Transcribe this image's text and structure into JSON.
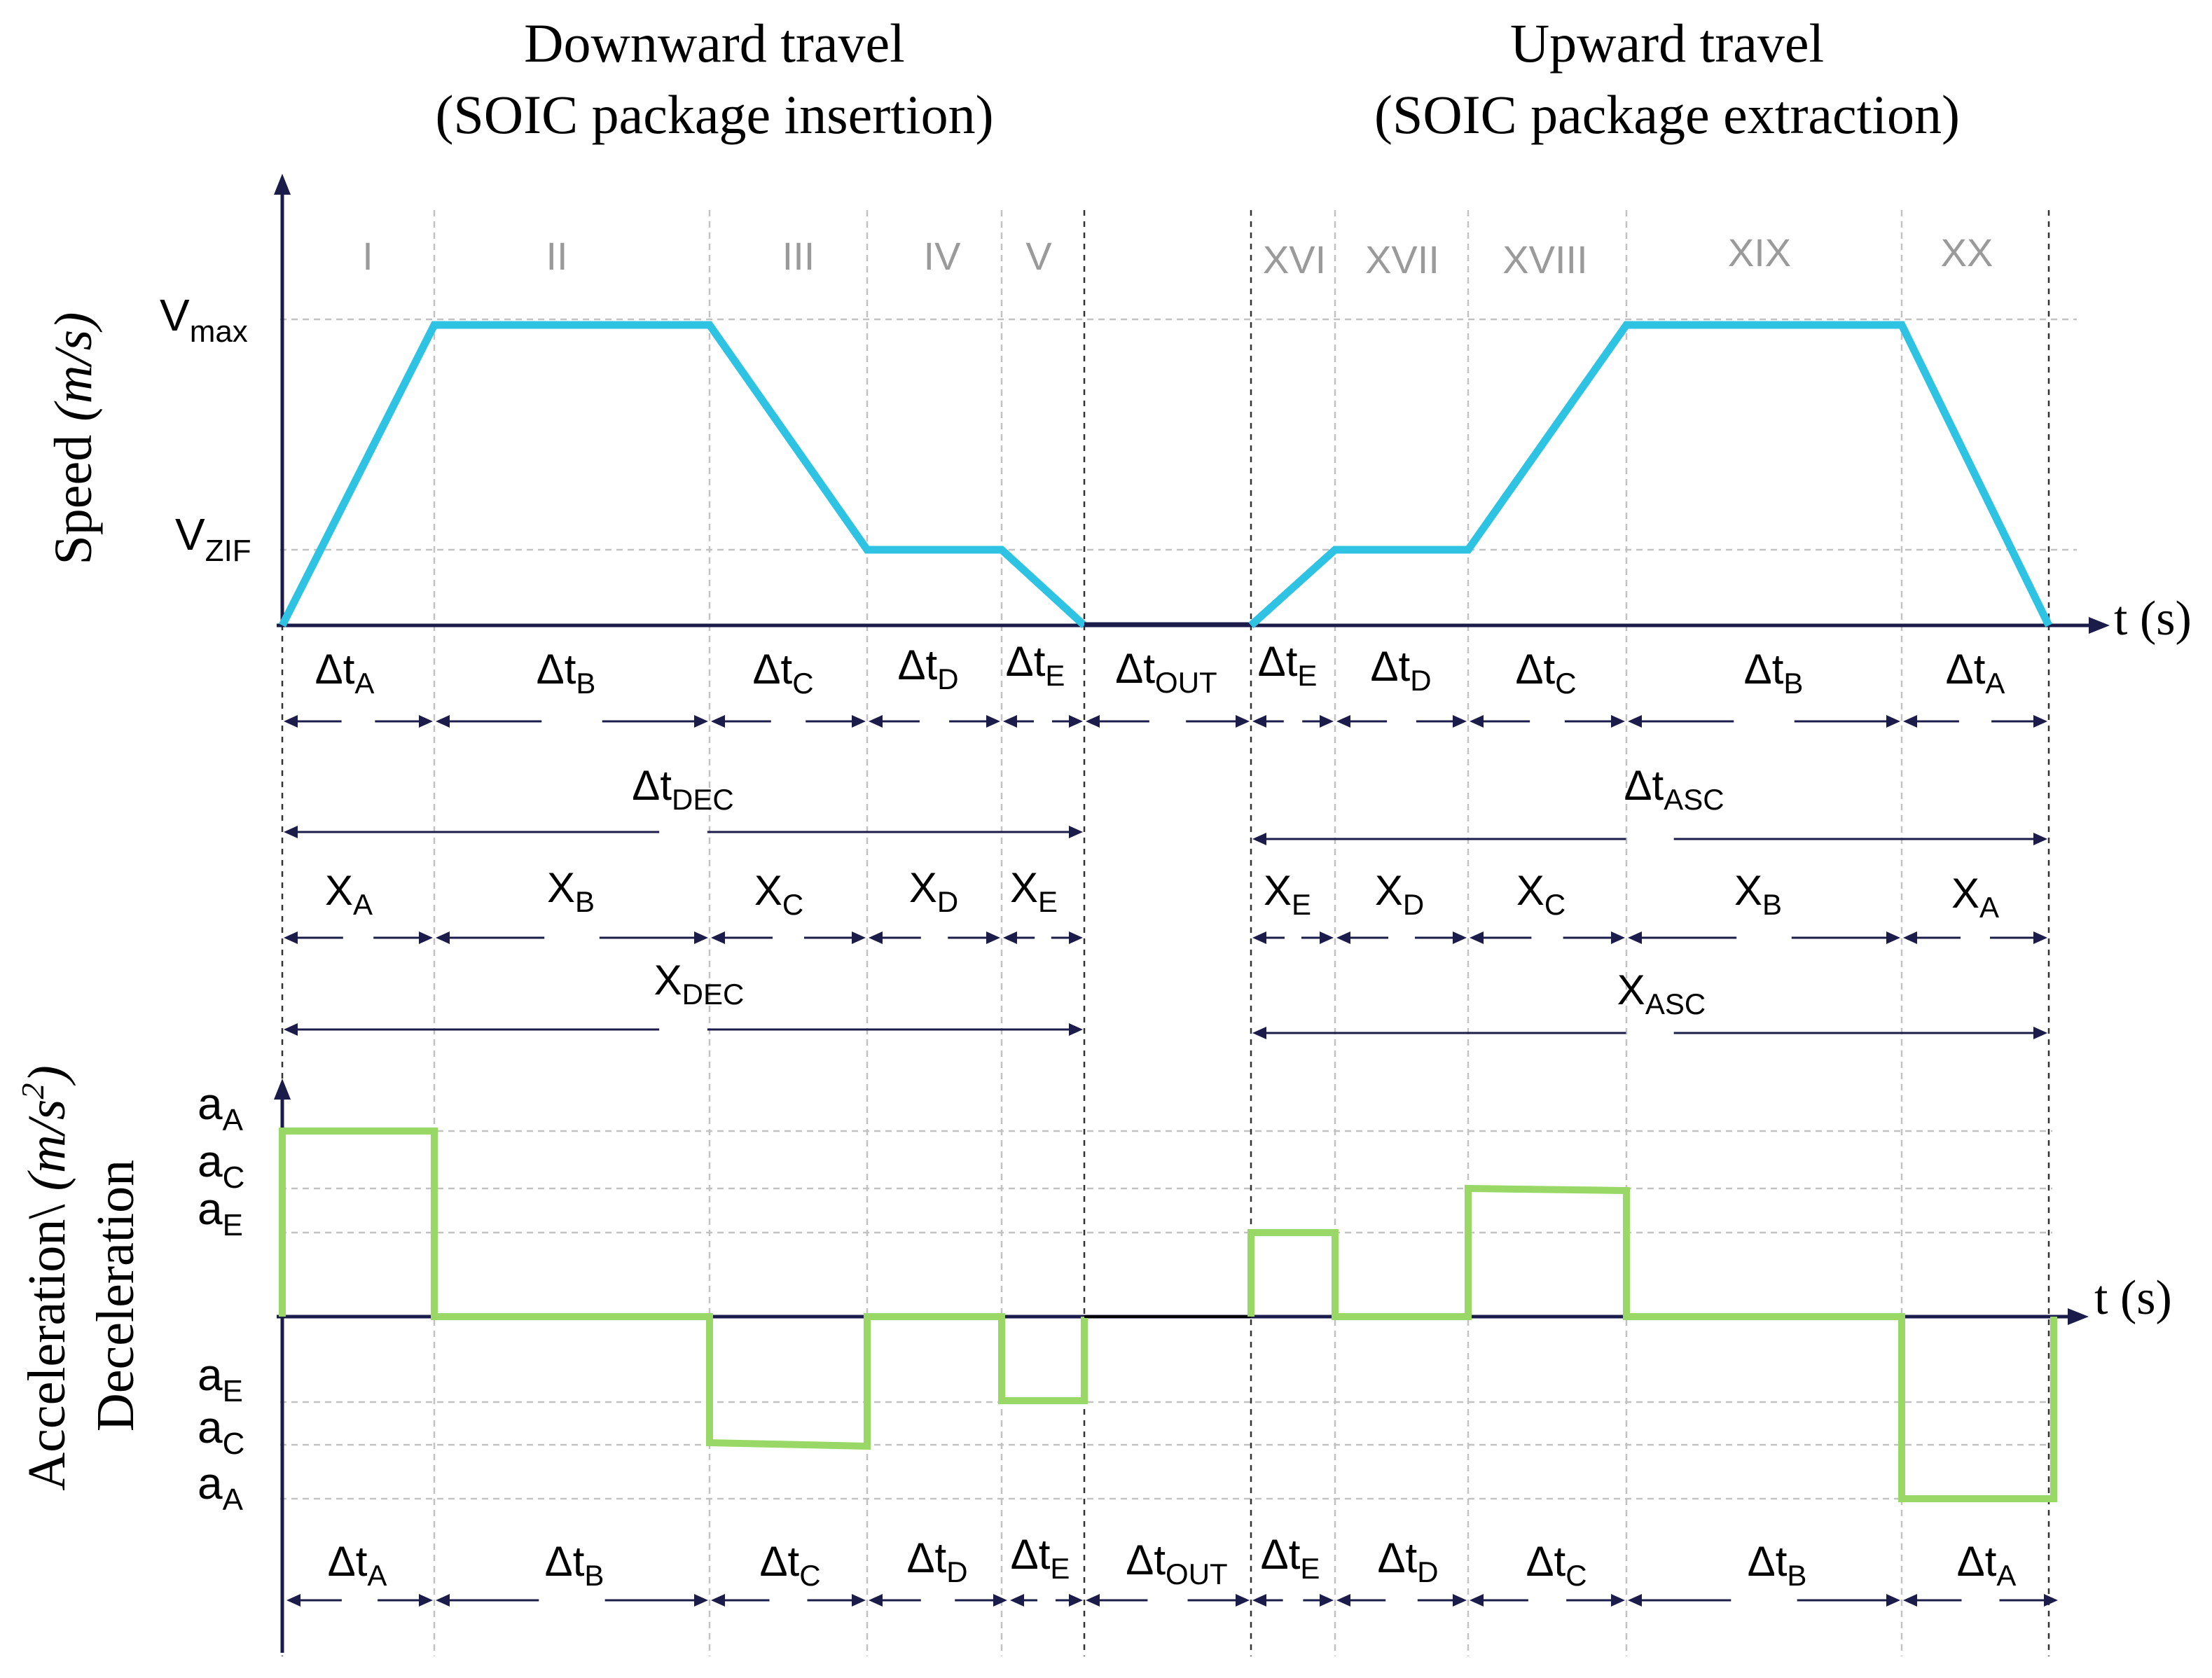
{
  "titles": {
    "downward": [
      "Downward travel",
      "(SOIC package insertion)"
    ],
    "upward": [
      "Upward travel",
      "(SOIC package extraction)"
    ]
  },
  "speed_chart": {
    "ylabel_main": "Speed ",
    "ylabel_unit": "(m/s)",
    "v_max": {
      "base": "V",
      "sub": "max"
    },
    "v_zif": {
      "base": "V",
      "sub": "ZIF"
    },
    "time_axis_label": "t (s)",
    "phases": [
      "I",
      "II",
      "III",
      "IV",
      "V",
      "XVI",
      "XVII",
      "XVIII",
      "XIX",
      "XX"
    ]
  },
  "time_intervals_row1": [
    {
      "base": "Δt",
      "sub": "A"
    },
    {
      "base": "Δt",
      "sub": "B"
    },
    {
      "base": "Δt",
      "sub": "C"
    },
    {
      "base": "Δt",
      "sub": "D"
    },
    {
      "base": "Δt",
      "sub": "E"
    },
    {
      "base": "Δt",
      "sub": "OUT"
    },
    {
      "base": "Δt",
      "sub": "E"
    },
    {
      "base": "Δt",
      "sub": "D"
    },
    {
      "base": "Δt",
      "sub": "C"
    },
    {
      "base": "Δt",
      "sub": "B"
    },
    {
      "base": "Δt",
      "sub": "A"
    }
  ],
  "totals": {
    "dt_dec": {
      "base": "Δt",
      "sub": "DEC"
    },
    "dt_asc": {
      "base": "Δt",
      "sub": "ASC"
    },
    "x_dec": {
      "base": "X",
      "sub": "DEC"
    },
    "x_asc": {
      "base": "X",
      "sub": "ASC"
    }
  },
  "distances": [
    {
      "base": "X",
      "sub": "A"
    },
    {
      "base": "X",
      "sub": "B"
    },
    {
      "base": "X",
      "sub": "C"
    },
    {
      "base": "X",
      "sub": "D"
    },
    {
      "base": "X",
      "sub": "E"
    },
    {
      "base": "X",
      "sub": "E"
    },
    {
      "base": "X",
      "sub": "D"
    },
    {
      "base": "X",
      "sub": "C"
    },
    {
      "base": "X",
      "sub": "B"
    },
    {
      "base": "X",
      "sub": "A"
    }
  ],
  "accel_chart": {
    "ylabel_line1_main": "Acceleration\\ ",
    "ylabel_line1_unit": "(m/s",
    "ylabel_line1_sup": "2",
    "ylabel_line1_close": ")",
    "ylabel_line2": "Deceleration",
    "time_axis_label": "t (s)",
    "levels_pos": [
      {
        "base": "a",
        "sub": "A"
      },
      {
        "base": "a",
        "sub": "C"
      },
      {
        "base": "a",
        "sub": "E"
      }
    ],
    "levels_neg": [
      {
        "base": "a",
        "sub": "E"
      },
      {
        "base": "a",
        "sub": "C"
      },
      {
        "base": "a",
        "sub": "A"
      }
    ]
  },
  "time_intervals_row2": [
    {
      "base": "Δt",
      "sub": "A"
    },
    {
      "base": "Δt",
      "sub": "B"
    },
    {
      "base": "Δt",
      "sub": "C"
    },
    {
      "base": "Δt",
      "sub": "D"
    },
    {
      "base": "Δt",
      "sub": "E"
    },
    {
      "base": "Δt",
      "sub": "OUT"
    },
    {
      "base": "Δt",
      "sub": "E"
    },
    {
      "base": "Δt",
      "sub": "D"
    },
    {
      "base": "Δt",
      "sub": "C"
    },
    {
      "base": "Δt",
      "sub": "B"
    },
    {
      "base": "Δt",
      "sub": "A"
    }
  ],
  "colors": {
    "speed_line": "#2ec3e3",
    "accel_line": "#99d866",
    "axis": "#1c1c4a",
    "phase_label": "#9a9a9a"
  }
}
